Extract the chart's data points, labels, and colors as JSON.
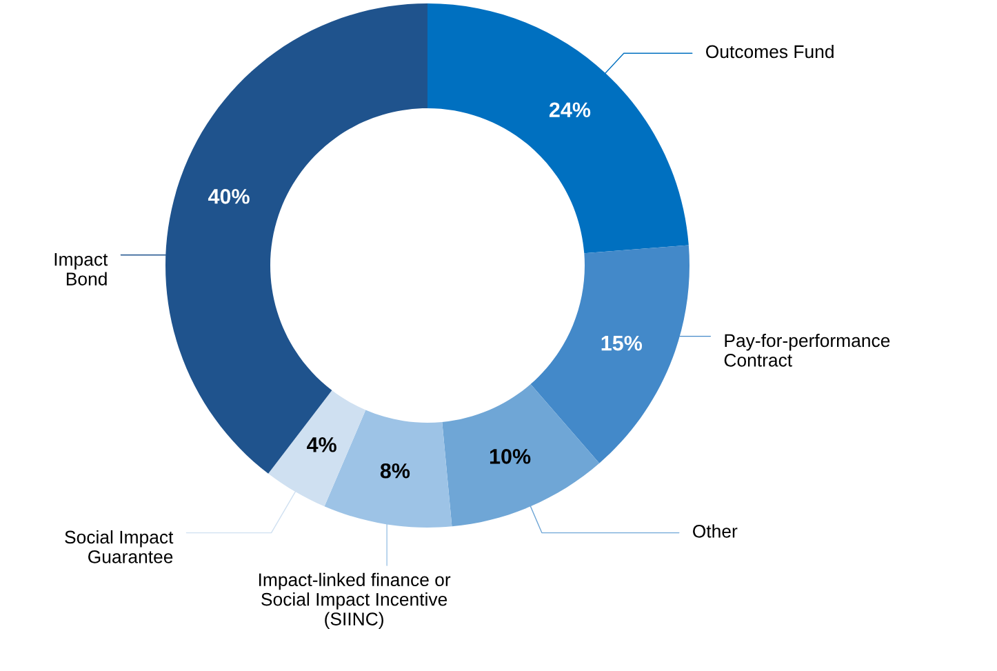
{
  "chart_data": {
    "type": "donut",
    "categories": [
      "Outcomes Fund",
      "Pay-for-performance\nContract",
      "Other",
      "Impact-linked finance or\nSocial Impact Incentive\n(SIINC)",
      "Social Impact\nGuarantee",
      "Impact\nBond"
    ],
    "values": [
      24,
      15,
      10,
      8,
      4,
      40
    ],
    "value_labels": [
      "24%",
      "15%",
      "10%",
      "8%",
      "4%",
      "40%"
    ],
    "colors": [
      "#0070c0",
      "#4389c9",
      "#6fa6d6",
      "#9dc3e6",
      "#cfe0f1",
      "#1f538d"
    ]
  }
}
